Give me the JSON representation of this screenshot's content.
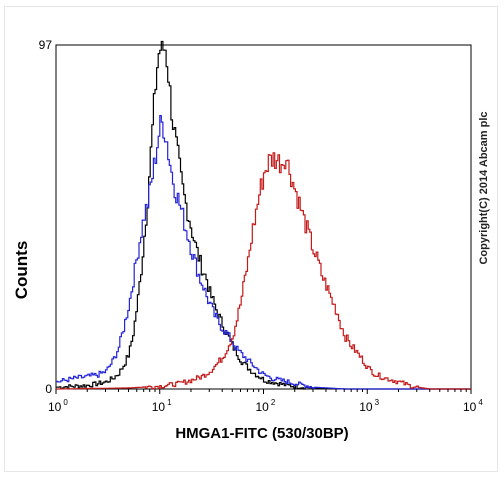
{
  "chart_data": {
    "type": "line",
    "title": "",
    "xlabel": "HMGA1-FITC (530/30BP)",
    "ylabel": "Counts",
    "x_scale": "log",
    "xlim": [
      1,
      10000
    ],
    "ylim": [
      0,
      97
    ],
    "x_ticks": [
      {
        "base": "10",
        "exp": "0",
        "value": 1
      },
      {
        "base": "10",
        "exp": "1",
        "value": 10
      },
      {
        "base": "10",
        "exp": "2",
        "value": 100
      },
      {
        "base": "10",
        "exp": "3",
        "value": 1000
      },
      {
        "base": "10",
        "exp": "4",
        "value": 10000
      }
    ],
    "y_ticks": [
      {
        "label": "0",
        "value": 0
      },
      {
        "label": "97",
        "value": 97
      }
    ],
    "annotation": "Copyright(C) 2014 Abcam plc",
    "grid": false,
    "legend": "none",
    "series": [
      {
        "color": "#000000",
        "points": [
          [
            1.0,
            0.5
          ],
          [
            1.5,
            0.8
          ],
          [
            2,
            1
          ],
          [
            2.5,
            1.5
          ],
          [
            3,
            2
          ],
          [
            3.5,
            3
          ],
          [
            4,
            4.5
          ],
          [
            4.5,
            7
          ],
          [
            5,
            10
          ],
          [
            5.5,
            16
          ],
          [
            6,
            24
          ],
          [
            6.5,
            33
          ],
          [
            7,
            43
          ],
          [
            7.5,
            53
          ],
          [
            8,
            65
          ],
          [
            8.5,
            76
          ],
          [
            9,
            86
          ],
          [
            9.5,
            94
          ],
          [
            10,
            96
          ],
          [
            10.5,
            95
          ],
          [
            11,
            97
          ],
          [
            11.5,
            93
          ],
          [
            12,
            88
          ],
          [
            12.5,
            82
          ],
          [
            13,
            77
          ],
          [
            14,
            70
          ],
          [
            15,
            64
          ],
          [
            16,
            58
          ],
          [
            17,
            54
          ],
          [
            18,
            51
          ],
          [
            19,
            48
          ],
          [
            20,
            45
          ],
          [
            22,
            40
          ],
          [
            24,
            36
          ],
          [
            26,
            33
          ],
          [
            28,
            31
          ],
          [
            30,
            27
          ],
          [
            33,
            24
          ],
          [
            36,
            21
          ],
          [
            40,
            18
          ],
          [
            45,
            15
          ],
          [
            50,
            12
          ],
          [
            55,
            10
          ],
          [
            60,
            8
          ],
          [
            70,
            6
          ],
          [
            80,
            4.5
          ],
          [
            90,
            3.5
          ],
          [
            100,
            2.5
          ],
          [
            120,
            2
          ],
          [
            140,
            1.5
          ],
          [
            170,
            1
          ],
          [
            200,
            0.8
          ],
          [
            250,
            0.5
          ],
          [
            300,
            0.3
          ],
          [
            400,
            0.2
          ],
          [
            600,
            0
          ],
          [
            10000,
            0
          ]
        ]
      },
      {
        "color": "#2424d8",
        "points": [
          [
            1.0,
            2
          ],
          [
            1.5,
            3
          ],
          [
            2,
            3.5
          ],
          [
            2.5,
            4
          ],
          [
            3,
            5
          ],
          [
            3.5,
            8
          ],
          [
            4,
            12
          ],
          [
            4.5,
            18
          ],
          [
            5,
            24
          ],
          [
            5.5,
            31
          ],
          [
            6,
            38
          ],
          [
            6.5,
            44
          ],
          [
            7,
            49
          ],
          [
            7.5,
            52
          ],
          [
            8,
            57
          ],
          [
            8.5,
            61
          ],
          [
            9,
            66
          ],
          [
            9.5,
            71
          ],
          [
            10,
            74
          ],
          [
            10.5,
            75
          ],
          [
            11,
            73
          ],
          [
            11.5,
            70
          ],
          [
            12,
            66
          ],
          [
            13,
            60
          ],
          [
            14,
            56
          ],
          [
            15,
            53
          ],
          [
            16,
            50
          ],
          [
            17,
            47
          ],
          [
            18,
            44
          ],
          [
            19,
            42
          ],
          [
            20,
            39
          ],
          [
            22,
            35
          ],
          [
            24,
            31
          ],
          [
            26,
            29
          ],
          [
            28,
            26
          ],
          [
            30,
            24
          ],
          [
            33,
            21
          ],
          [
            36,
            19
          ],
          [
            40,
            17
          ],
          [
            45,
            15
          ],
          [
            50,
            13
          ],
          [
            55,
            11
          ],
          [
            60,
            10
          ],
          [
            70,
            8
          ],
          [
            80,
            6.5
          ],
          [
            90,
            5
          ],
          [
            100,
            4
          ],
          [
            120,
            3
          ],
          [
            140,
            2.5
          ],
          [
            170,
            2
          ],
          [
            200,
            1.5
          ],
          [
            250,
            1
          ],
          [
            300,
            0.5
          ],
          [
            400,
            0.3
          ],
          [
            600,
            0
          ],
          [
            10000,
            0
          ]
        ]
      },
      {
        "color": "#c41a1a",
        "points": [
          [
            1.0,
            0
          ],
          [
            5,
            0.3
          ],
          [
            10,
            0.8
          ],
          [
            15,
            1.5
          ],
          [
            20,
            2.5
          ],
          [
            25,
            3.5
          ],
          [
            30,
            5
          ],
          [
            35,
            7
          ],
          [
            40,
            9
          ],
          [
            45,
            12
          ],
          [
            50,
            15
          ],
          [
            55,
            20
          ],
          [
            60,
            25
          ],
          [
            65,
            31
          ],
          [
            70,
            36
          ],
          [
            75,
            42
          ],
          [
            80,
            47
          ],
          [
            85,
            51
          ],
          [
            90,
            55
          ],
          [
            95,
            58
          ],
          [
            100,
            61
          ],
          [
            110,
            64
          ],
          [
            120,
            65
          ],
          [
            130,
            65
          ],
          [
            140,
            64
          ],
          [
            150,
            64
          ],
          [
            160,
            66
          ],
          [
            170,
            63
          ],
          [
            180,
            61
          ],
          [
            190,
            58
          ],
          [
            200,
            56
          ],
          [
            220,
            52
          ],
          [
            240,
            48
          ],
          [
            260,
            45
          ],
          [
            280,
            42
          ],
          [
            300,
            39
          ],
          [
            330,
            36
          ],
          [
            360,
            32
          ],
          [
            400,
            29
          ],
          [
            450,
            25
          ],
          [
            500,
            22
          ],
          [
            550,
            18
          ],
          [
            600,
            15
          ],
          [
            700,
            12
          ],
          [
            800,
            10
          ],
          [
            900,
            8
          ],
          [
            1000,
            6
          ],
          [
            1200,
            4
          ],
          [
            1500,
            3
          ],
          [
            2000,
            2
          ],
          [
            2500,
            1
          ],
          [
            3000,
            0.5
          ],
          [
            4000,
            0
          ],
          [
            10000,
            0
          ]
        ]
      }
    ]
  }
}
